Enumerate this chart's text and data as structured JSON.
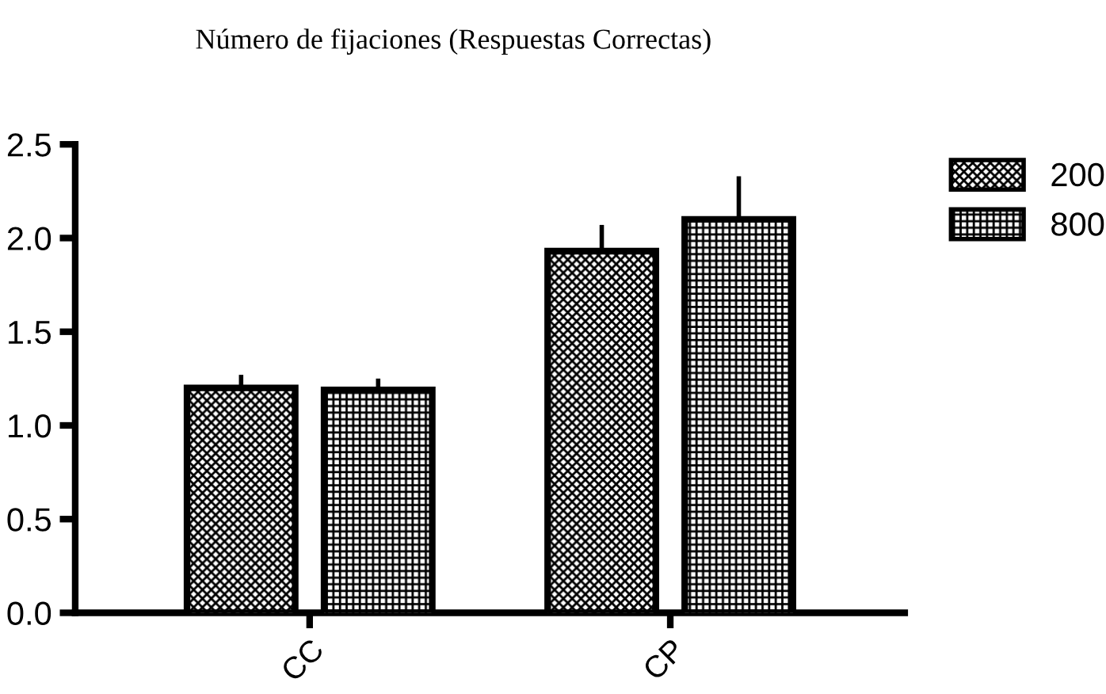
{
  "chart_data": {
    "type": "bar",
    "title": "Número de fijaciones (Respuestas Correctas)",
    "categories": [
      "CC",
      "CP"
    ],
    "series": [
      {
        "name": "200",
        "color": "#000000",
        "values": [
          1.2,
          1.93
        ],
        "errors": [
          0.07,
          0.14
        ]
      },
      {
        "name": "800",
        "color": "#000000",
        "values": [
          1.19,
          2.1
        ],
        "errors": [
          0.06,
          0.23
        ]
      }
    ],
    "ylim": [
      0,
      2.5
    ],
    "yticks": [
      {
        "value": 0,
        "label": "0.0"
      },
      {
        "value": 0.5,
        "label": "0.5"
      },
      {
        "value": 1,
        "label": "1.0"
      },
      {
        "value": 1.5,
        "label": "1.5"
      },
      {
        "value": 2,
        "label": "2.0"
      },
      {
        "value": 2.5,
        "label": "2.5"
      }
    ],
    "grid": false,
    "legend": "top right"
  }
}
